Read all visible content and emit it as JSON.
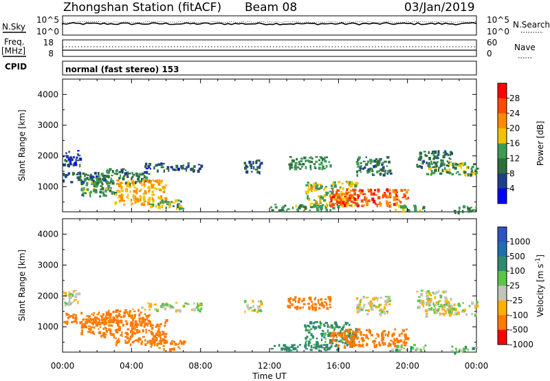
{
  "header": {
    "station": "Zhongshan Station (fitACF)",
    "beam": "Beam 08",
    "date": "03/Jan/2019"
  },
  "top_panels": {
    "nsky_label": "N.Sky",
    "nsearch_label": "N.Search",
    "freq_label": "Freq.",
    "freq_unit": "[MHz]",
    "nave_label": "Nave",
    "cpid_label": "CPID",
    "cpid_text": "normal (fast stereo) 153",
    "count_ticks": [
      "10^5",
      "10^0"
    ],
    "freq_ticks": [
      "18",
      "8"
    ],
    "nave_ticks": [
      "60",
      "0"
    ]
  },
  "chart_data": [
    {
      "type": "heatmap",
      "name": "Power",
      "ylabel": "Slant Range [km]",
      "y_ticks": [
        1000,
        2000,
        3000,
        4000
      ],
      "ylim": [
        180,
        4500
      ],
      "xlabel": "Time UT",
      "x_ticks": [
        "00:00",
        "04:00",
        "08:00",
        "12:00",
        "16:00",
        "20:00",
        "00:00"
      ],
      "colorbar": {
        "label": "Power [dB]",
        "ticks": [
          4,
          8,
          12,
          16,
          20,
          24,
          28
        ],
        "range": [
          0,
          32
        ],
        "colors": [
          "#0000ff",
          "#1e3f8c",
          "#2e6e3c",
          "#3c9a55",
          "#f2c400",
          "#ff8c00",
          "#ff4a00",
          "#ff0000"
        ]
      },
      "scatter_regions": [
        {
          "t": [
            0.0,
            2.0
          ],
          "r": [
            1150,
            1500
          ],
          "value": 8
        },
        {
          "t": [
            0.0,
            1.0
          ],
          "r": [
            1700,
            2200
          ],
          "value": 6
        },
        {
          "t": [
            1.0,
            3.0
          ],
          "r": [
            700,
            1300
          ],
          "value": 13
        },
        {
          "t": [
            2.0,
            5.0
          ],
          "r": [
            1100,
            1600
          ],
          "value": 10
        },
        {
          "t": [
            3.0,
            6.0
          ],
          "r": [
            450,
            1250
          ],
          "value": 20
        },
        {
          "t": [
            4.5,
            8.0
          ],
          "r": [
            1550,
            1800
          ],
          "value": 7
        },
        {
          "t": [
            5.0,
            7.0
          ],
          "r": [
            300,
            600
          ],
          "value": 14
        },
        {
          "t": [
            10.5,
            11.5
          ],
          "r": [
            1500,
            1900
          ],
          "value": 7
        },
        {
          "t": [
            12.0,
            16.0
          ],
          "r": [
            250,
            450
          ],
          "value": 14
        },
        {
          "t": [
            13.0,
            15.5
          ],
          "r": [
            1600,
            2000
          ],
          "value": 12
        },
        {
          "t": [
            14.0,
            17.0
          ],
          "r": [
            400,
            1200
          ],
          "value": 17
        },
        {
          "t": [
            15.5,
            20.0
          ],
          "r": [
            400,
            950
          ],
          "value": 26
        },
        {
          "t": [
            17.0,
            19.0
          ],
          "r": [
            1400,
            2000
          ],
          "value": 11
        },
        {
          "t": [
            19.0,
            21.0
          ],
          "r": [
            250,
            450
          ],
          "value": 15
        },
        {
          "t": [
            20.5,
            22.5
          ],
          "r": [
            1650,
            2200
          ],
          "value": 9
        },
        {
          "t": [
            21.0,
            24.0
          ],
          "r": [
            1400,
            1850
          ],
          "value": 14
        },
        {
          "t": [
            22.5,
            24.0
          ],
          "r": [
            200,
            400
          ],
          "value": 12
        }
      ]
    },
    {
      "type": "heatmap",
      "name": "Velocity",
      "ylabel": "Slant Range [km]",
      "y_ticks": [
        1000,
        2000,
        3000,
        4000
      ],
      "ylim": [
        180,
        4500
      ],
      "xlabel": "Time UT",
      "x_ticks": [
        "00:00",
        "04:00",
        "08:00",
        "12:00",
        "16:00",
        "20:00",
        "00:00"
      ],
      "colorbar": {
        "label": "Velocity [m s^-1]",
        "ticks": [
          1000,
          500,
          100,
          25,
          -25,
          -100,
          -500,
          -1000
        ],
        "colors": [
          "#2f52c4",
          "#1e6fb0",
          "#2f8a6e",
          "#5dc44a",
          "#c4c4bc",
          "#ffb000",
          "#ff7a00",
          "#ff0000"
        ]
      },
      "scatter_regions": [
        {
          "t": [
            0.0,
            2.0
          ],
          "r": [
            1150,
            1500
          ],
          "value": -200
        },
        {
          "t": [
            0.0,
            1.0
          ],
          "r": [
            1700,
            2200
          ],
          "value": 0
        },
        {
          "t": [
            1.0,
            3.0
          ],
          "r": [
            700,
            1300
          ],
          "value": -300
        },
        {
          "t": [
            2.0,
            5.0
          ],
          "r": [
            1100,
            1600
          ],
          "value": -300
        },
        {
          "t": [
            3.0,
            6.0
          ],
          "r": [
            450,
            1250
          ],
          "value": -400
        },
        {
          "t": [
            4.5,
            8.0
          ],
          "r": [
            1550,
            1800
          ],
          "value": 0
        },
        {
          "t": [
            5.0,
            7.0
          ],
          "r": [
            300,
            600
          ],
          "value": -200
        },
        {
          "t": [
            10.5,
            11.5
          ],
          "r": [
            1500,
            1900
          ],
          "value": 0
        },
        {
          "t": [
            12.0,
            16.0
          ],
          "r": [
            250,
            450
          ],
          "value": 200
        },
        {
          "t": [
            13.0,
            15.5
          ],
          "r": [
            1600,
            2000
          ],
          "value": -200
        },
        {
          "t": [
            14.0,
            17.0
          ],
          "r": [
            400,
            1200
          ],
          "value": 150
        },
        {
          "t": [
            15.5,
            20.0
          ],
          "r": [
            400,
            950
          ],
          "value": -300
        },
        {
          "t": [
            17.0,
            19.0
          ],
          "r": [
            1400,
            2000
          ],
          "value": 0
        },
        {
          "t": [
            19.0,
            21.0
          ],
          "r": [
            250,
            450
          ],
          "value": 60
        },
        {
          "t": [
            20.5,
            22.5
          ],
          "r": [
            1650,
            2200
          ],
          "value": 0
        },
        {
          "t": [
            21.0,
            24.0
          ],
          "r": [
            1400,
            1850
          ],
          "value": 0
        },
        {
          "t": [
            22.5,
            24.0
          ],
          "r": [
            200,
            400
          ],
          "value": 60
        }
      ]
    }
  ]
}
